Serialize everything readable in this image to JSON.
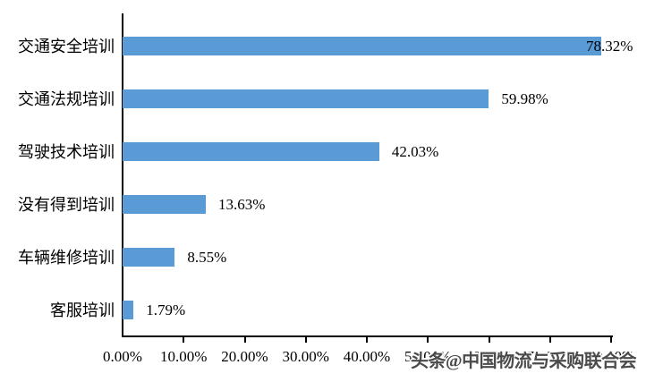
{
  "page": {
    "background": "#ffffff",
    "text_color": "#000000"
  },
  "chart_data": {
    "type": "bar",
    "orientation": "horizontal",
    "title": "",
    "xlabel": "",
    "ylabel": "",
    "grid": false,
    "legend": false,
    "bar_color": "#5B9BD5",
    "categories": [
      "交通安全培训",
      "交通法规培训",
      "驾驶技术培训",
      "没有得到培训",
      "车辆维修培训",
      "客服培训"
    ],
    "values": [
      78.32,
      59.98,
      42.03,
      13.63,
      8.55,
      1.79
    ],
    "value_labels": [
      "78.32%",
      "59.98%",
      "42.03%",
      "13.63%",
      "8.55%",
      "1.79%"
    ],
    "x_axis": {
      "min": 0,
      "max": 80,
      "step": 10,
      "tick_labels": [
        "0.00%",
        "10.00%",
        "20.00%",
        "30.00%",
        "40.00%",
        "50.00%",
        "60.00%",
        "70.00%",
        "80.00%"
      ]
    }
  },
  "watermark": {
    "text": "头条@中国物流与采购联合会",
    "color": "#4b4b4b"
  }
}
